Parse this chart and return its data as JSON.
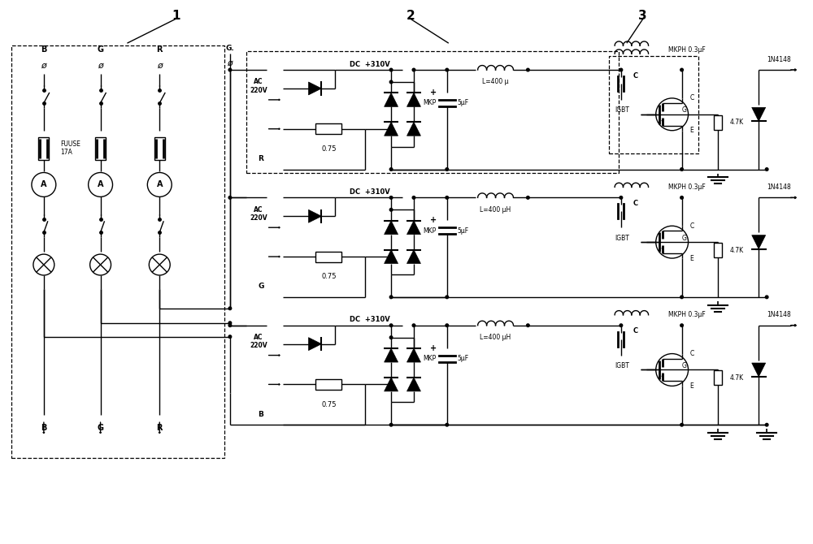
{
  "bg_color": "#ffffff",
  "block1_label": "1",
  "block2_label": "2",
  "block3_label": "3",
  "fuuse_label": "FUUSE\n17A",
  "ac_label": "AC\n220V",
  "dc_label": "DC  +310V",
  "l_labels": [
    "L=400 μ",
    "L=400 μH",
    "L=400 μH"
  ],
  "mkp_label": "MKP",
  "cap_labels": [
    "5μF",
    "5μF",
    "5μF"
  ],
  "mkph_label": "MKPH 0.3μF",
  "igbt_label": "IGBT",
  "diode_label": "1N4148",
  "res_label": "4.7K",
  "r075_label": "0.75",
  "col_labels": [
    "B",
    "G",
    "R"
  ],
  "row_ch_labels": [
    "R",
    "G",
    "B"
  ],
  "phi_char": "ø"
}
